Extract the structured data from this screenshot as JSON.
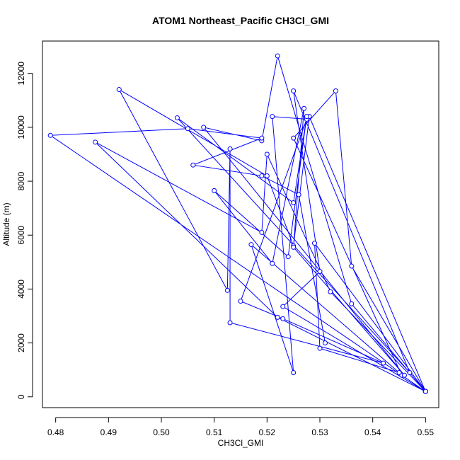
{
  "chart_data": {
    "type": "line",
    "title": "ATOM1 Northeast_Pacific CH3Cl_GMI",
    "xlabel": "CH3Cl_GMI",
    "ylabel": "Altitude (m)",
    "xlim": [
      0.4775,
      0.5525
    ],
    "ylim": [
      -400,
      13200
    ],
    "xticks": [
      0.48,
      0.49,
      0.5,
      0.51,
      0.52,
      0.53,
      0.54,
      0.55
    ],
    "xtick_labels": [
      "0.48",
      "0.49",
      "0.50",
      "0.51",
      "0.52",
      "0.53",
      "0.54",
      "0.55"
    ],
    "yticks": [
      0,
      2000,
      4000,
      6000,
      8000,
      10000,
      12000
    ],
    "ytick_labels": [
      "0",
      "2000",
      "4000",
      "6000",
      "8000",
      "10000",
      "12000"
    ],
    "series": [
      {
        "color": "#0000ff",
        "points": [
          [
            0.55,
            200
          ],
          [
            0.5455,
            800
          ],
          [
            0.525,
            9600
          ],
          [
            0.533,
            11350
          ],
          [
            0.536,
            4850
          ],
          [
            0.55,
            200
          ],
          [
            0.532,
            3900
          ],
          [
            0.52,
            9000
          ],
          [
            0.519,
            6100
          ],
          [
            0.4875,
            9450
          ],
          [
            0.522,
            2950
          ],
          [
            0.55,
            200
          ],
          [
            0.528,
            10400
          ],
          [
            0.525,
            5600
          ],
          [
            0.52,
            8200
          ],
          [
            0.492,
            11400
          ],
          [
            0.5125,
            3950
          ],
          [
            0.513,
            9200
          ],
          [
            0.513,
            2750
          ],
          [
            0.542,
            1250
          ],
          [
            0.523,
            2900
          ],
          [
            0.515,
            3550
          ],
          [
            0.5275,
            10300
          ],
          [
            0.521,
            10400
          ],
          [
            0.525,
            900
          ],
          [
            0.517,
            5650
          ],
          [
            0.545,
            900
          ],
          [
            0.53,
            1800
          ],
          [
            0.529,
            5700
          ],
          [
            0.55,
            200
          ],
          [
            0.536,
            3450
          ],
          [
            0.522,
            12650
          ],
          [
            0.519,
            9500
          ],
          [
            0.508,
            10000
          ],
          [
            0.546,
            800
          ],
          [
            0.525,
            5550
          ],
          [
            0.527,
            10700
          ],
          [
            0.521,
            4950
          ],
          [
            0.51,
            7650
          ],
          [
            0.524,
            5200
          ],
          [
            0.5275,
            10400
          ],
          [
            0.525,
            7200
          ],
          [
            0.503,
            10350
          ],
          [
            0.547,
            900
          ],
          [
            0.525,
            11350
          ],
          [
            0.53,
            4650
          ],
          [
            0.523,
            3350
          ],
          [
            0.55,
            200
          ],
          [
            0.479,
            9700
          ],
          [
            0.505,
            9950
          ],
          [
            0.519,
            9600
          ],
          [
            0.506,
            8600
          ],
          [
            0.519,
            8200
          ],
          [
            0.526,
            7500
          ],
          [
            0.531,
            2000
          ]
        ]
      }
    ]
  }
}
